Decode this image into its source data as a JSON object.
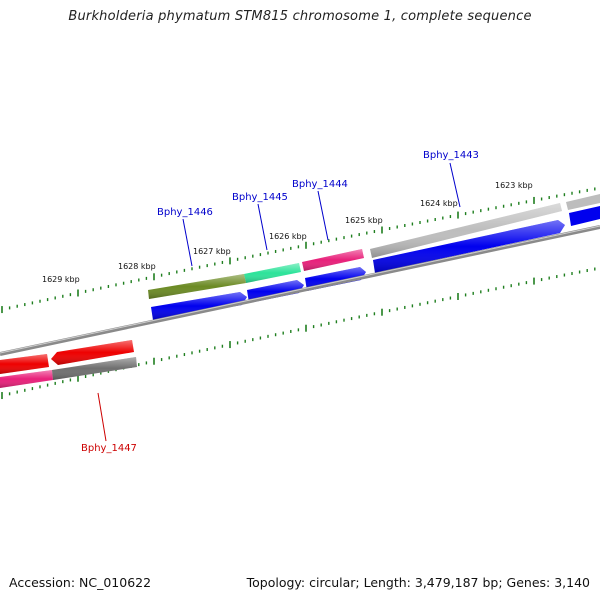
{
  "title": "Burkholderia phymatum STM815 chromosome 1, complete sequence",
  "footer": {
    "accession": "Accession: NC_010622",
    "summary": "Topology: circular; Length: 3,479,187 bp; Genes: 3,140"
  },
  "colors": {
    "tick": "#1f7f1f",
    "backbone": "#8a8a8a",
    "label_forward": "#0000cc",
    "label_reverse": "#cc0000",
    "cds_forward": "#0000ee",
    "cds_reverse": "#ee0000"
  },
  "scale_labels": [
    "1623 kbp",
    "1624 kbp",
    "1625 kbp",
    "1626 kbp",
    "1627 kbp",
    "1628 kbp",
    "1629 kbp"
  ],
  "gene_labels": [
    {
      "text": "Bphy_1443",
      "strand": "forward"
    },
    {
      "text": "Bphy_1444",
      "strand": "forward"
    },
    {
      "text": "Bphy_1445",
      "strand": "forward"
    },
    {
      "text": "Bphy_1446",
      "strand": "forward"
    },
    {
      "text": "Bphy_1447",
      "strand": "reverse"
    }
  ],
  "feature_colors": {
    "forward_annotation": [
      "#bdbdbd",
      "#e8207a",
      "#2de39a",
      "#6b8a23"
    ],
    "reverse_annotation": [
      "#e8207a",
      "#6f6f6f"
    ]
  }
}
